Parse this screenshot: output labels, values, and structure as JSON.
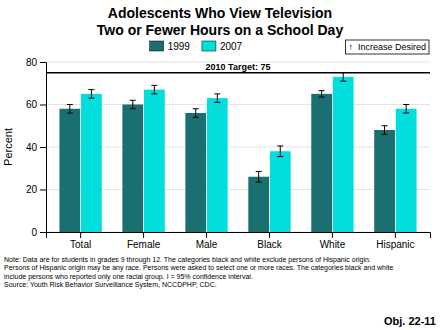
{
  "chart_data": {
    "type": "bar",
    "title": "Adolescents Who View Television\nTwo or Fewer Hours on a School Day",
    "categories": [
      "Total",
      "Female",
      "Male",
      "Black",
      "White",
      "Hispanic"
    ],
    "series": [
      {
        "name": "1999",
        "color": "#1a7070",
        "values": [
          58,
          60,
          56,
          26,
          65,
          48
        ],
        "errors": [
          2.0,
          2.0,
          2.0,
          2.5,
          1.5,
          2.0
        ]
      },
      {
        "name": "2007",
        "color": "#00dede",
        "values": [
          65,
          67,
          63,
          38,
          73,
          58
        ],
        "errors": [
          2.0,
          2.0,
          2.0,
          2.5,
          2.0,
          2.0
        ]
      }
    ],
    "y_label": "Percent",
    "ylim": [
      0,
      80
    ],
    "yticks": [
      0,
      20,
      40,
      60,
      80
    ],
    "grid": true,
    "legend": "top",
    "target_line": {
      "value": 75,
      "label": "2010 Target: 75"
    },
    "increase_label": "↑  Increase Desired",
    "note": "Note: Data are for students in grades 9 through 12. The categories black and white exclude persons of Hispanic origin.\nPersons of Hispanic origin may be any race. Persons were asked to select one or more races. The categories black and white\ninclude persons who reported only one racial group. I = 95% confidence interval.\nSource: Youth Risk Behavior Surveillance System, NCCDPHP, CDC.",
    "corner_label": "Obj. 22-11"
  }
}
